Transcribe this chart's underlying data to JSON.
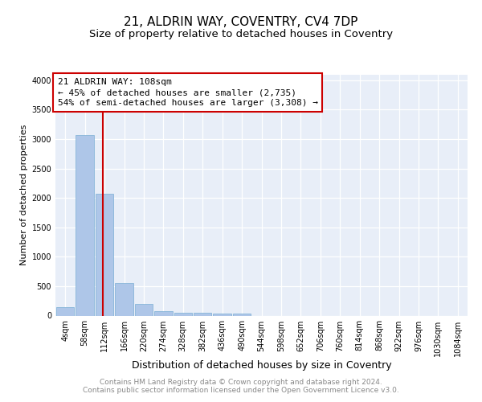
{
  "title1": "21, ALDRIN WAY, COVENTRY, CV4 7DP",
  "title2": "Size of property relative to detached houses in Coventry",
  "xlabel": "Distribution of detached houses by size in Coventry",
  "ylabel": "Number of detached properties",
  "bin_labels": [
    "4sqm",
    "58sqm",
    "112sqm",
    "166sqm",
    "220sqm",
    "274sqm",
    "328sqm",
    "382sqm",
    "436sqm",
    "490sqm",
    "544sqm",
    "598sqm",
    "652sqm",
    "706sqm",
    "760sqm",
    "814sqm",
    "868sqm",
    "922sqm",
    "976sqm",
    "1030sqm",
    "1084sqm"
  ],
  "bar_heights": [
    150,
    3070,
    2070,
    560,
    200,
    75,
    50,
    50,
    30,
    30,
    0,
    0,
    0,
    0,
    0,
    0,
    0,
    0,
    0,
    0,
    0
  ],
  "bar_color": "#aec6e8",
  "bar_edge_color": "#7aaed4",
  "vline_color": "#cc0000",
  "annotation_line1": "21 ALDRIN WAY: 108sqm",
  "annotation_line2": "← 45% of detached houses are smaller (2,735)",
  "annotation_line3": "54% of semi-detached houses are larger (3,308) →",
  "annotation_box_color": "white",
  "annotation_box_edge": "#cc0000",
  "ylim": [
    0,
    4100
  ],
  "yticks": [
    0,
    500,
    1000,
    1500,
    2000,
    2500,
    3000,
    3500,
    4000
  ],
  "background_color": "#e8eef8",
  "footer_text1": "Contains HM Land Registry data © Crown copyright and database right 2024.",
  "footer_text2": "Contains public sector information licensed under the Open Government Licence v3.0.",
  "title1_fontsize": 11,
  "title2_fontsize": 9.5,
  "xlabel_fontsize": 9,
  "ylabel_fontsize": 8,
  "tick_fontsize": 7,
  "annotation_fontsize": 8,
  "footer_fontsize": 6.5
}
